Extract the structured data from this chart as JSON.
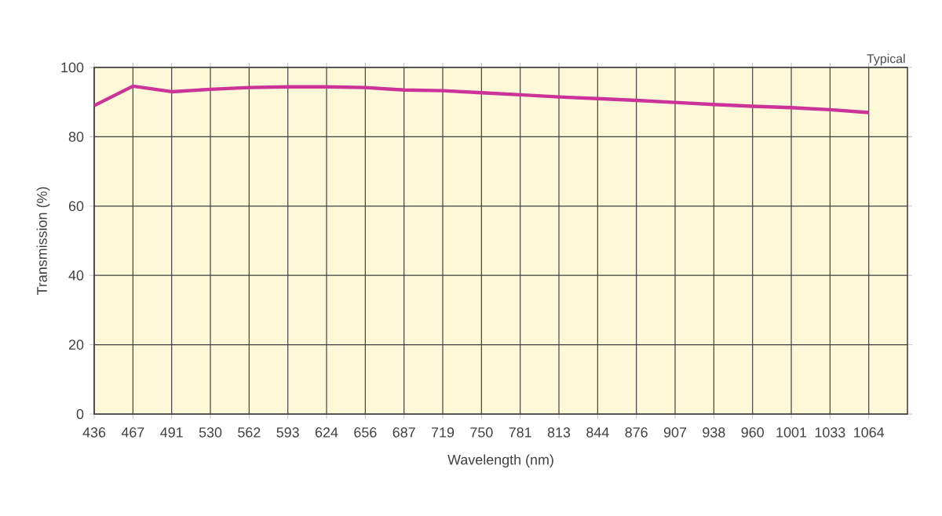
{
  "chart_data": {
    "type": "line",
    "xlabel": "Wavelength (nm)",
    "ylabel": "Transmission (%)",
    "annotations": [
      "Typical"
    ],
    "categories": [
      "436",
      "467",
      "491",
      "530",
      "562",
      "593",
      "624",
      "656",
      "687",
      "719",
      "750",
      "781",
      "813",
      "844",
      "876",
      "907",
      "938",
      "960",
      "1001",
      "1033",
      "1064"
    ],
    "series": [
      {
        "color": "#cc3399",
        "values": [
          89,
          94.6,
          93.0,
          93.7,
          94.2,
          94.4,
          94.4,
          94.2,
          93.5,
          93.3,
          92.7,
          92.1,
          91.5,
          91.0,
          90.5,
          89.9,
          89.3,
          88.8,
          88.4,
          87.8,
          87.0
        ]
      }
    ],
    "ylim": [
      0,
      100
    ],
    "yticks": [
      0,
      20,
      40,
      60,
      80,
      100
    ],
    "grid": true,
    "marker": "none",
    "line_style": "solid"
  }
}
